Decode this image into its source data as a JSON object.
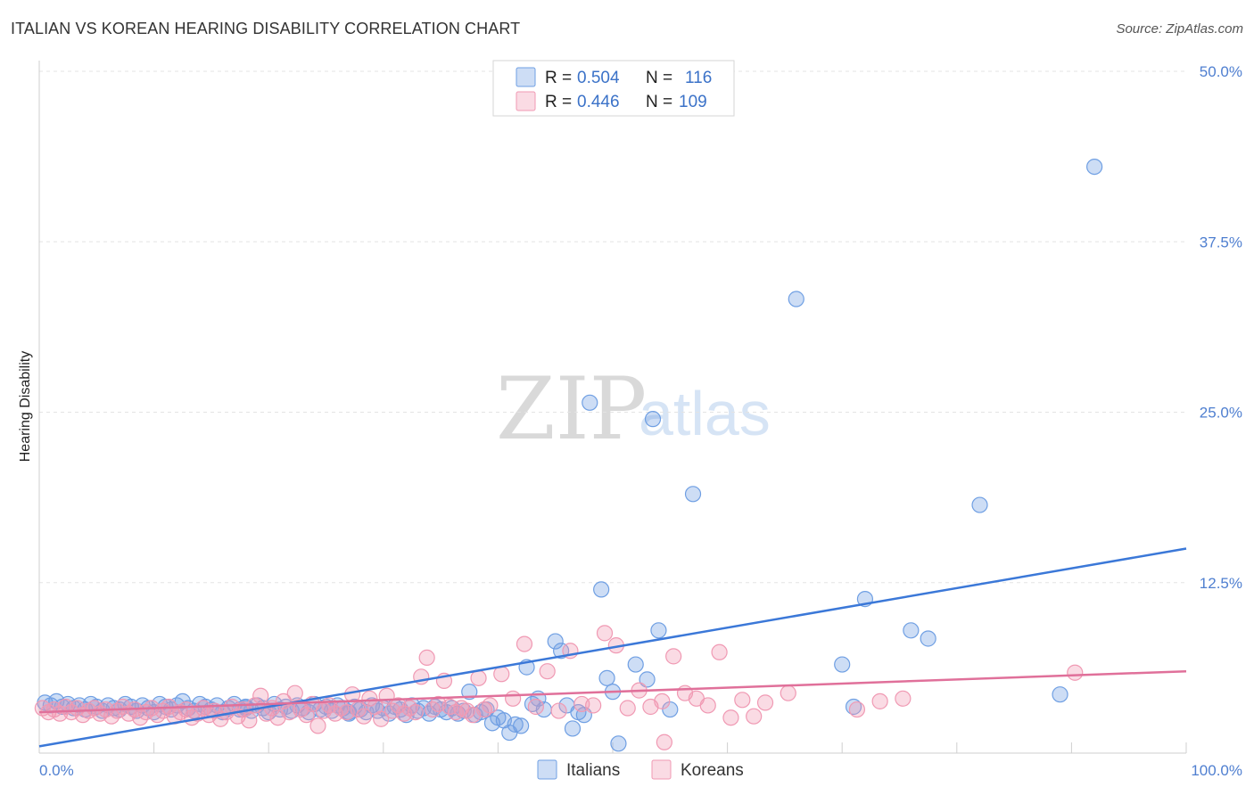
{
  "header": {
    "title": "ITALIAN VS KOREAN HEARING DISABILITY CORRELATION CHART",
    "source": "Source: ZipAtlas.com"
  },
  "watermark": {
    "zip": "ZIP",
    "atlas": "atlas"
  },
  "legend": {
    "rows": [
      {
        "r_label": "R = ",
        "r_value": "0.504",
        "n_label": "N = ",
        "n_value": "116",
        "color": "#6f9fe3"
      },
      {
        "r_label": "R = ",
        "r_value": "0.446",
        "n_label": "N = ",
        "n_value": "109",
        "color": "#f099b3"
      }
    ]
  },
  "bottom_legend": [
    "Italians",
    "Koreans"
  ],
  "chart_data": {
    "type": "scatter",
    "title": "ITALIAN VS KOREAN HEARING DISABILITY CORRELATION CHART",
    "xlabel": "",
    "ylabel": "Hearing Disability",
    "xlim": [
      0,
      100
    ],
    "ylim": [
      0,
      50
    ],
    "x_tick_labels": [
      "0.0%",
      "100.0%"
    ],
    "y_ticks": [
      12.5,
      25.0,
      37.5,
      50.0
    ],
    "y_tick_labels": [
      "12.5%",
      "25.0%",
      "37.5%",
      "50.0%"
    ],
    "grid": true,
    "legend_position": "top-center",
    "series": [
      {
        "name": "Italians",
        "color": "#6f9fe3",
        "line_color": "#3b78d8",
        "trend": {
          "x": [
            0,
            100
          ],
          "y": [
            0.5,
            15.0
          ]
        },
        "points": [
          [
            0.5,
            3.7
          ],
          [
            1,
            3.5
          ],
          [
            1.5,
            3.8
          ],
          [
            2,
            3.4
          ],
          [
            2.5,
            3.6
          ],
          [
            3,
            3.3
          ],
          [
            3.5,
            3.5
          ],
          [
            4,
            3.2
          ],
          [
            4.5,
            3.6
          ],
          [
            5,
            3.4
          ],
          [
            5.5,
            3.1
          ],
          [
            6,
            3.5
          ],
          [
            6.5,
            3.3
          ],
          [
            7,
            3.2
          ],
          [
            7.5,
            3.6
          ],
          [
            8,
            3.4
          ],
          [
            8.5,
            3.1
          ],
          [
            9,
            3.5
          ],
          [
            9.5,
            3.3
          ],
          [
            10,
            3.0
          ],
          [
            10.5,
            3.6
          ],
          [
            11,
            3.4
          ],
          [
            11.5,
            3.2
          ],
          [
            12,
            3.5
          ],
          [
            12.5,
            3.8
          ],
          [
            13,
            3.3
          ],
          [
            13.5,
            3.1
          ],
          [
            14,
            3.6
          ],
          [
            14.5,
            3.4
          ],
          [
            15,
            3.2
          ],
          [
            15.5,
            3.5
          ],
          [
            16,
            3.0
          ],
          [
            16.5,
            3.3
          ],
          [
            17,
            3.6
          ],
          [
            17.5,
            3.2
          ],
          [
            18,
            3.4
          ],
          [
            18.5,
            3.1
          ],
          [
            19,
            3.5
          ],
          [
            19.5,
            3.3
          ],
          [
            20,
            3.0
          ],
          [
            20.5,
            3.6
          ],
          [
            21,
            3.2
          ],
          [
            21.5,
            3.4
          ],
          [
            22,
            3.1
          ],
          [
            22.5,
            3.5
          ],
          [
            23,
            3.3
          ],
          [
            23.5,
            3.0
          ],
          [
            24,
            3.6
          ],
          [
            24.5,
            3.2
          ],
          [
            25,
            3.4
          ],
          [
            25.5,
            3.1
          ],
          [
            26,
            3.5
          ],
          [
            26.5,
            3.3
          ],
          [
            27,
            2.9
          ],
          [
            27.5,
            3.4
          ],
          [
            28,
            3.2
          ],
          [
            28.5,
            3.0
          ],
          [
            29,
            3.5
          ],
          [
            29.5,
            3.1
          ],
          [
            30,
            3.3
          ],
          [
            30.5,
            2.9
          ],
          [
            31,
            3.4
          ],
          [
            31.5,
            3.2
          ],
          [
            32,
            2.8
          ],
          [
            32.5,
            3.5
          ],
          [
            33,
            3.1
          ],
          [
            33.5,
            3.3
          ],
          [
            34,
            2.9
          ],
          [
            34.5,
            3.4
          ],
          [
            35,
            3.2
          ],
          [
            35.5,
            3.0
          ],
          [
            36,
            3.3
          ],
          [
            36.5,
            2.9
          ],
          [
            37,
            3.1
          ],
          [
            37.5,
            4.5
          ],
          [
            38,
            2.8
          ],
          [
            38.5,
            3.0
          ],
          [
            39,
            3.2
          ],
          [
            39.5,
            2.2
          ],
          [
            40,
            2.6
          ],
          [
            40.5,
            2.4
          ],
          [
            41,
            1.5
          ],
          [
            41.5,
            2.1
          ],
          [
            42,
            2.0
          ],
          [
            42.5,
            6.3
          ],
          [
            43,
            3.6
          ],
          [
            43.5,
            4.0
          ],
          [
            44,
            3.2
          ],
          [
            45,
            8.2
          ],
          [
            45.5,
            7.5
          ],
          [
            46,
            3.5
          ],
          [
            46.5,
            1.8
          ],
          [
            47,
            3.0
          ],
          [
            47.5,
            2.8
          ],
          [
            48,
            25.7
          ],
          [
            49,
            12.0
          ],
          [
            49.5,
            5.5
          ],
          [
            50,
            4.5
          ],
          [
            50.5,
            0.7
          ],
          [
            52,
            6.5
          ],
          [
            53,
            5.4
          ],
          [
            53.5,
            24.5
          ],
          [
            54,
            9.0
          ],
          [
            55,
            3.2
          ],
          [
            57,
            19.0
          ],
          [
            66,
            33.3
          ],
          [
            70,
            6.5
          ],
          [
            71,
            3.4
          ],
          [
            72,
            11.3
          ],
          [
            76,
            9.0
          ],
          [
            77.5,
            8.4
          ],
          [
            82,
            18.2
          ],
          [
            89,
            4.3
          ],
          [
            92,
            43.0
          ],
          [
            18,
            3.3
          ],
          [
            27,
            3.0
          ]
        ]
      },
      {
        "name": "Koreans",
        "color": "#f099b3",
        "line_color": "#e0709a",
        "trend": {
          "x": [
            0,
            100
          ],
          "y": [
            3.0,
            6.0
          ]
        },
        "points": [
          [
            0.3,
            3.3
          ],
          [
            0.8,
            3.0
          ],
          [
            1.3,
            3.2
          ],
          [
            1.8,
            2.9
          ],
          [
            2.3,
            3.4
          ],
          [
            2.8,
            3.0
          ],
          [
            3.3,
            3.3
          ],
          [
            3.8,
            2.8
          ],
          [
            4.3,
            3.1
          ],
          [
            4.8,
            3.3
          ],
          [
            5.3,
            2.9
          ],
          [
            5.8,
            3.2
          ],
          [
            6.3,
            2.7
          ],
          [
            6.8,
            3.1
          ],
          [
            7.3,
            3.4
          ],
          [
            7.8,
            2.9
          ],
          [
            8.3,
            3.2
          ],
          [
            8.8,
            2.6
          ],
          [
            9.3,
            3.0
          ],
          [
            9.8,
            3.3
          ],
          [
            10.3,
            2.8
          ],
          [
            10.8,
            3.1
          ],
          [
            11.3,
            3.4
          ],
          [
            11.8,
            2.7
          ],
          [
            12.3,
            3.0
          ],
          [
            12.8,
            3.2
          ],
          [
            13.3,
            2.6
          ],
          [
            13.8,
            2.9
          ],
          [
            14.3,
            3.3
          ],
          [
            14.8,
            2.8
          ],
          [
            15.3,
            3.1
          ],
          [
            15.8,
            2.5
          ],
          [
            16.3,
            3.0
          ],
          [
            16.8,
            3.4
          ],
          [
            17.3,
            2.7
          ],
          [
            17.8,
            3.2
          ],
          [
            18.3,
            2.4
          ],
          [
            18.8,
            3.5
          ],
          [
            19.3,
            4.2
          ],
          [
            19.8,
            2.9
          ],
          [
            20.3,
            3.3
          ],
          [
            20.8,
            2.6
          ],
          [
            21.3,
            3.8
          ],
          [
            21.8,
            3.0
          ],
          [
            22.3,
            4.4
          ],
          [
            22.8,
            3.2
          ],
          [
            23.3,
            2.8
          ],
          [
            23.8,
            3.6
          ],
          [
            24.3,
            2.0
          ],
          [
            24.8,
            3.1
          ],
          [
            25.3,
            3.5
          ],
          [
            25.8,
            2.9
          ],
          [
            26.3,
            3.3
          ],
          [
            26.8,
            3.0
          ],
          [
            27.3,
            4.3
          ],
          [
            27.8,
            3.2
          ],
          [
            28.3,
            2.7
          ],
          [
            28.8,
            4.0
          ],
          [
            29.3,
            3.4
          ],
          [
            29.8,
            2.5
          ],
          [
            30.3,
            4.2
          ],
          [
            30.8,
            3.1
          ],
          [
            31.3,
            3.5
          ],
          [
            31.8,
            2.9
          ],
          [
            32.3,
            3.3
          ],
          [
            32.8,
            3.0
          ],
          [
            33.3,
            5.6
          ],
          [
            33.8,
            7.0
          ],
          [
            34.3,
            3.2
          ],
          [
            34.8,
            3.6
          ],
          [
            35.3,
            5.3
          ],
          [
            35.8,
            3.4
          ],
          [
            36.3,
            3.0
          ],
          [
            36.8,
            3.3
          ],
          [
            37.3,
            3.1
          ],
          [
            37.8,
            2.8
          ],
          [
            38.3,
            5.5
          ],
          [
            38.8,
            3.2
          ],
          [
            39.3,
            3.5
          ],
          [
            40.3,
            5.8
          ],
          [
            41.3,
            4.0
          ],
          [
            42.3,
            8.0
          ],
          [
            43.3,
            3.4
          ],
          [
            44.3,
            6.0
          ],
          [
            45.3,
            3.1
          ],
          [
            46.3,
            7.5
          ],
          [
            47.3,
            3.6
          ],
          [
            48.3,
            3.5
          ],
          [
            49.3,
            8.8
          ],
          [
            50.3,
            7.9
          ],
          [
            51.3,
            3.3
          ],
          [
            52.3,
            4.6
          ],
          [
            53.3,
            3.4
          ],
          [
            54.3,
            3.8
          ],
          [
            55.3,
            7.1
          ],
          [
            56.3,
            4.4
          ],
          [
            57.3,
            4.0
          ],
          [
            58.3,
            3.5
          ],
          [
            59.3,
            7.4
          ],
          [
            60.3,
            2.6
          ],
          [
            61.3,
            3.9
          ],
          [
            62.3,
            2.7
          ],
          [
            63.3,
            3.7
          ],
          [
            65.3,
            4.4
          ],
          [
            71.3,
            3.2
          ],
          [
            73.3,
            3.8
          ],
          [
            75.3,
            4.0
          ],
          [
            90.3,
            5.9
          ],
          [
            54.5,
            0.8
          ]
        ]
      }
    ]
  }
}
